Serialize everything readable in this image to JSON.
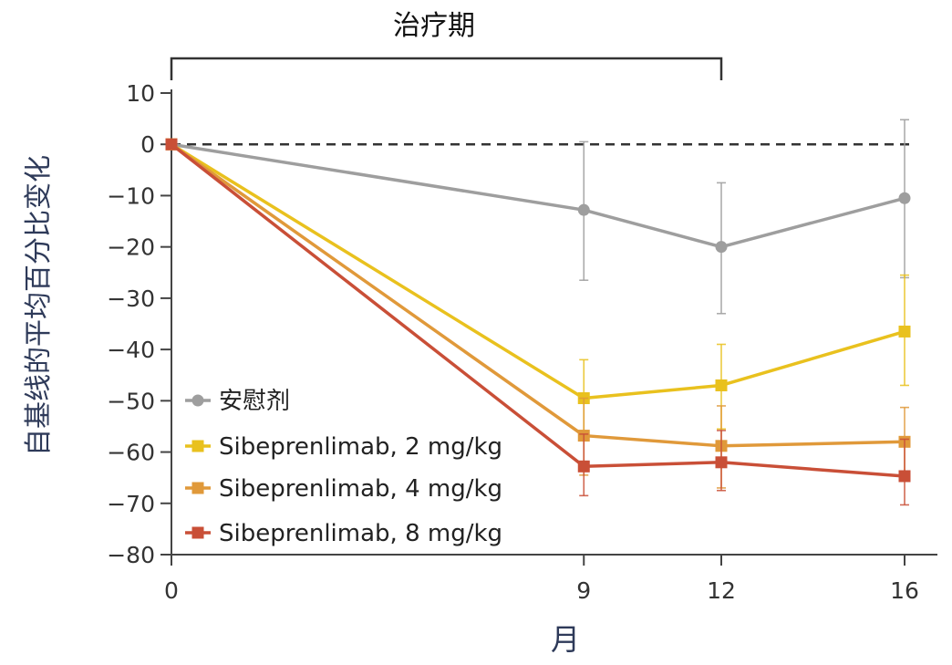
{
  "chart_data": {
    "type": "line",
    "treatment_label": "治疗期",
    "treatment_span": [
      0,
      12
    ],
    "xlabel": "月",
    "ylabel": "自基线的平均百分比变化",
    "x": [
      0,
      9,
      12,
      16
    ],
    "x_ticks": [
      0,
      9,
      12,
      16
    ],
    "y_ticks": [
      10,
      0,
      -10,
      -20,
      -30,
      -40,
      -50,
      -60,
      -70,
      -80
    ],
    "ylim": [
      -80,
      10
    ],
    "xlim": [
      0,
      16
    ],
    "reference_line": 0,
    "series": [
      {
        "name": "安慰剂",
        "color": "#9e9e9e",
        "marker": "circle",
        "values": [
          0,
          -12.8,
          -20,
          -10.5
        ],
        "err_low": [
          null,
          -26.5,
          -33,
          -26
        ],
        "err_high": [
          null,
          0.5,
          -7.5,
          4.8
        ]
      },
      {
        "name": "Sibeprenlimab, 2 mg/kg",
        "color": "#e9c11e",
        "marker": "square",
        "values": [
          0,
          -49.5,
          -47,
          -36.5
        ],
        "err_low": [
          null,
          -57.5,
          -55.5,
          -47
        ],
        "err_high": [
          null,
          -42,
          -39,
          -25.5
        ]
      },
      {
        "name": "Sibeprenlimab, 4 mg/kg",
        "color": "#e0993a",
        "marker": "square",
        "values": [
          0,
          -56.8,
          -58.8,
          -58
        ],
        "err_low": [
          null,
          -64.5,
          -67,
          -65
        ],
        "err_high": [
          null,
          -49.5,
          -51,
          -51.3
        ]
      },
      {
        "name": "Sibeprenlimab, 8 mg/kg",
        "color": "#c94f37",
        "marker": "square",
        "values": [
          0,
          -62.8,
          -62,
          -64.7
        ],
        "err_low": [
          null,
          -68.5,
          -67.5,
          -70.3
        ],
        "err_high": [
          null,
          -56.5,
          -55.8,
          -57.5
        ]
      }
    ]
  }
}
